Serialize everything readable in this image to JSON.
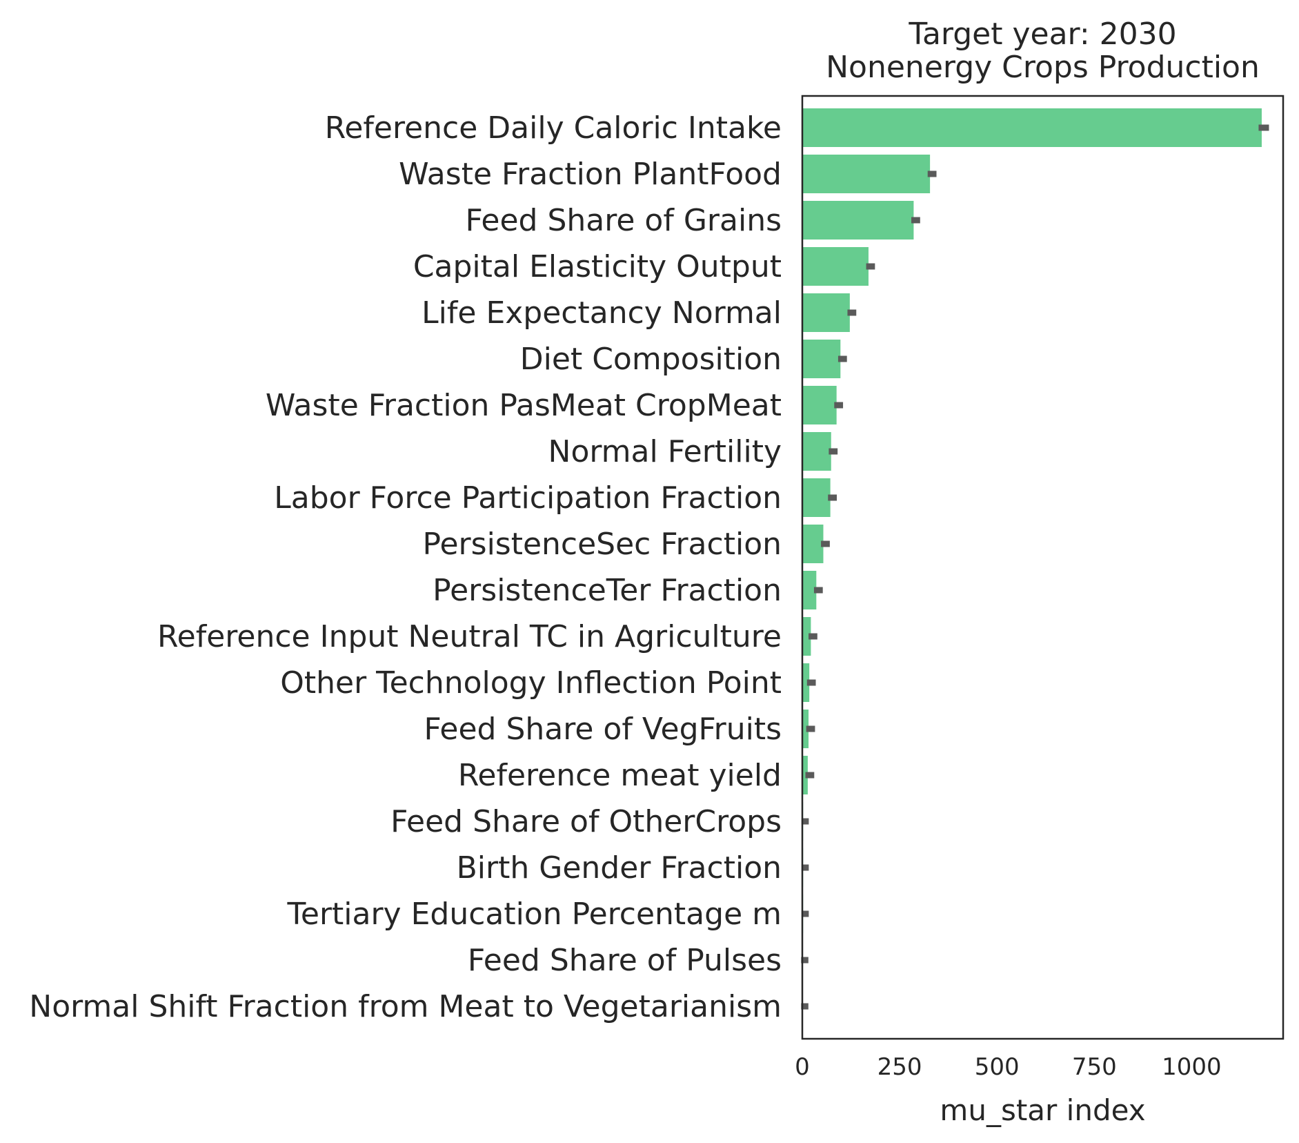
{
  "chart_data": {
    "type": "bar",
    "orientation": "horizontal",
    "title_lines": [
      "Target year: 2030",
      "Nonenergy Crops Production"
    ],
    "xlabel": "mu_star index",
    "ylabel": "",
    "xlim": [
      0,
      1235
    ],
    "xticks": [
      0,
      250,
      500,
      750,
      1000
    ],
    "xtick_labels": [
      "0",
      "250",
      "500",
      "750",
      "1000"
    ],
    "grid": false,
    "bar_color": "#66cc8f",
    "error_color": "#5a5a5a",
    "categories": [
      "Reference Daily Caloric Intake",
      "Waste Fraction PlantFood",
      "Feed Share of Grains",
      "Capital Elasticity Output",
      "Life Expectancy Normal",
      "Diet Composition",
      "Waste Fraction PasMeat CropMeat",
      "Normal Fertility",
      "Labor Force Participation Fraction",
      "PersistenceSec Fraction",
      "PersistenceTer Fraction",
      "Reference Input Neutral TC in Agriculture",
      "Other Technology Inflection Point",
      "Feed Share of VegFruits",
      "Reference meat yield",
      "Feed Share of OtherCrops",
      "Birth Gender Fraction",
      "Tertiary Education Percentage m",
      "Feed Share of Pulses",
      "Normal Shift Fraction from Meat to Vegetarianism"
    ],
    "values": [
      1180,
      328,
      286,
      170,
      122,
      98,
      88,
      74,
      72,
      54,
      36,
      22,
      18,
      16,
      14,
      2,
      2,
      2,
      1,
      1
    ],
    "errors": [
      8,
      6,
      6,
      6,
      6,
      6,
      6,
      6,
      6,
      6,
      6,
      6,
      6,
      6,
      6,
      4,
      4,
      4,
      4,
      4
    ]
  }
}
